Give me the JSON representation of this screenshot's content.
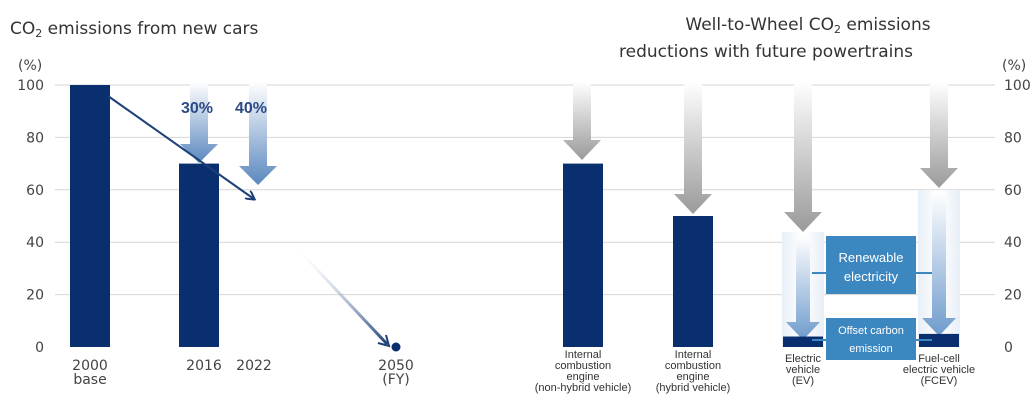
{
  "colors": {
    "bar": "#0a2f6e",
    "arrow_dark": "#1c3f78",
    "grid": "#d6d6d6",
    "box": "#3c87bf",
    "glow": "#c9d9ea"
  },
  "left_chart": {
    "title_pre": "CO",
    "title_sub": "2",
    "title_post": " emissions from new cars",
    "unit": "(%)",
    "pct_30": "30%",
    "pct_40": "40%"
  },
  "right_chart": {
    "title_line1_pre": "Well-to-Wheel CO",
    "title_line1_sub": "2",
    "title_line1_post": " emissions",
    "title_line2": "reductions with future powertrains",
    "unit": "(%)",
    "box_renewable_line1": "Renewable",
    "box_renewable_line2": "electricity",
    "box_offset_line1": "Offset carbon",
    "box_offset_line2": "emission"
  },
  "chart_data": [
    {
      "type": "bar",
      "title": "CO2 emissions from new cars",
      "ylabel": "(%)",
      "ylim": [
        0,
        100
      ],
      "yticks": [
        "0",
        "20",
        "40",
        "60",
        "80",
        "100"
      ],
      "categories": [
        {
          "lines": [
            "2000",
            "base"
          ],
          "x": 2000
        },
        {
          "lines": [
            "2016"
          ],
          "x": 2016
        },
        {
          "lines": [
            "2022"
          ],
          "x": 2022
        },
        {
          "lines": [
            "2050",
            "(FY)"
          ],
          "x": 2050
        }
      ],
      "values": [
        100,
        70,
        null,
        0
      ],
      "annotations": [
        "30%",
        "40%"
      ],
      "grid": true
    },
    {
      "type": "bar",
      "title": "Well-to-Wheel CO2 emissions reductions with future powertrains",
      "ylabel": "(%)",
      "ylim": [
        0,
        100
      ],
      "yticks": [
        "0",
        "20",
        "40",
        "60",
        "80",
        "100"
      ],
      "categories": [
        {
          "lines": [
            "Internal",
            "combustion",
            "engine",
            "(non-hybrid vehicle)"
          ]
        },
        {
          "lines": [
            "Internal",
            "combustion",
            "engine",
            "(hybrid vehicle)"
          ]
        },
        {
          "lines": [
            "Electric",
            "vehicle",
            "(EV)"
          ]
        },
        {
          "lines": [
            "Fuel-cell",
            "electric vehicle",
            "(FCEV)"
          ]
        }
      ],
      "values": [
        70,
        50,
        4,
        5
      ],
      "grid": true
    }
  ]
}
